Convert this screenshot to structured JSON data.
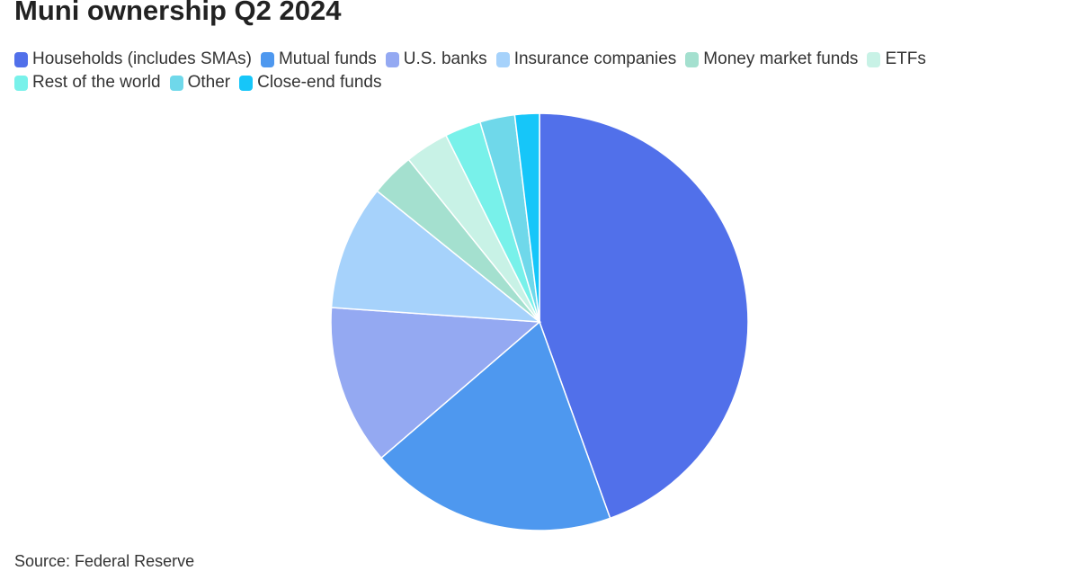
{
  "chart_data": {
    "type": "pie",
    "title": "Muni ownership Q2 2024",
    "source": "Source: Federal Reserve",
    "categories": [
      "Households (includes SMAs)",
      "Mutual funds",
      "U.S. banks",
      "Insurance companies",
      "Money market funds",
      "ETFs",
      "Rest of the world",
      "Other",
      "Close-end funds"
    ],
    "values": [
      44.5,
      19.2,
      12.4,
      9.7,
      3.4,
      3.4,
      2.8,
      2.7,
      1.9
    ],
    "colors": [
      "#5170ea",
      "#4e98ef",
      "#94a9f2",
      "#a6d2fb",
      "#a4e0cf",
      "#c8f2e6",
      "#78f1ea",
      "#6fd8ea",
      "#16c6f9"
    ]
  }
}
